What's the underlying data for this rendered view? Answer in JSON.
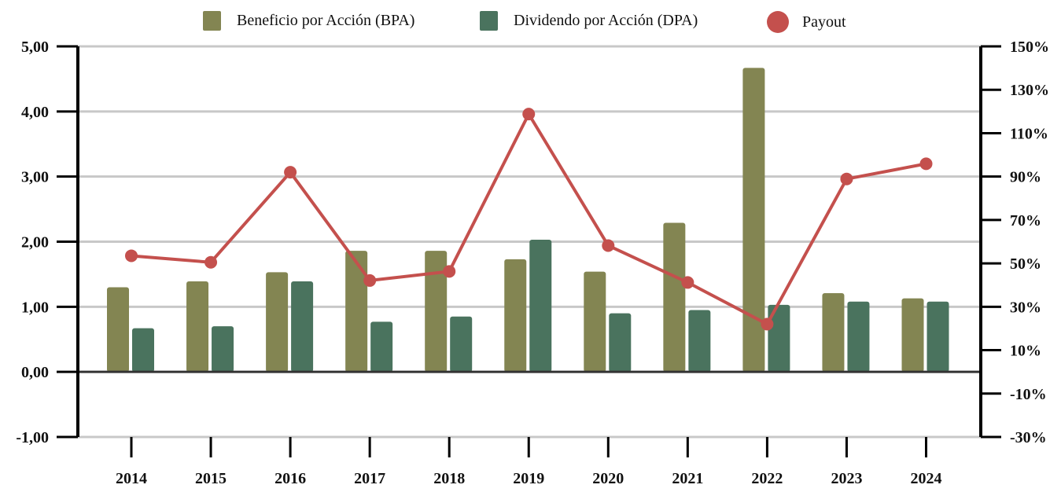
{
  "legend": [
    {
      "label": "Beneficio por Acción (BPA)",
      "color": "#838552",
      "shape": "square"
    },
    {
      "label": "Dividendo por Acción (DPA)",
      "color": "#4a735e",
      "shape": "square"
    },
    {
      "label": "Payout",
      "color": "#c4504d",
      "shape": "circle"
    }
  ],
  "chart_data": {
    "type": "bar",
    "title": "",
    "xlabel": "",
    "ylabel": "",
    "y2label": "",
    "categories": [
      "2014",
      "2015",
      "2016",
      "2017",
      "2018",
      "2019",
      "2020",
      "2021",
      "2022",
      "2023",
      "2024"
    ],
    "series": [
      {
        "name": "Beneficio por Acción (BPA)",
        "type": "bar",
        "axis": "left",
        "color": "#838552",
        "values": [
          1.3,
          1.39,
          1.53,
          1.86,
          1.86,
          1.73,
          1.54,
          2.29,
          4.67,
          1.21,
          1.13
        ]
      },
      {
        "name": "Dividendo por Acción (DPA)",
        "type": "bar",
        "axis": "left",
        "color": "#4a735e",
        "values": [
          0.67,
          0.7,
          1.39,
          0.77,
          0.85,
          2.03,
          0.9,
          0.95,
          1.03,
          1.08,
          1.08
        ]
      },
      {
        "name": "Payout",
        "type": "line",
        "axis": "right",
        "color": "#c4504d",
        "unit": "%",
        "values": [
          53.5,
          50.5,
          92.0,
          42.1,
          46.3,
          118.8,
          58.2,
          41.2,
          22.0,
          88.9,
          95.9
        ]
      }
    ],
    "ylim": [
      -1,
      5
    ],
    "yticks": [
      "5,00",
      "4,00",
      "3,00",
      "2,00",
      "1,00",
      "0,00",
      "-1,00"
    ],
    "ytick_values": [
      5,
      4,
      3,
      2,
      1,
      0,
      -1
    ],
    "y2lim": [
      -30,
      150
    ],
    "y2ticks": [
      "150%",
      "130%",
      "110%",
      "90%",
      "70%",
      "50%",
      "30%",
      "10%",
      "-10%",
      "-30%"
    ],
    "y2tick_values": [
      150,
      130,
      110,
      90,
      70,
      50,
      30,
      10,
      -10,
      -30
    ],
    "grid": true,
    "legend_position": "top-center"
  }
}
